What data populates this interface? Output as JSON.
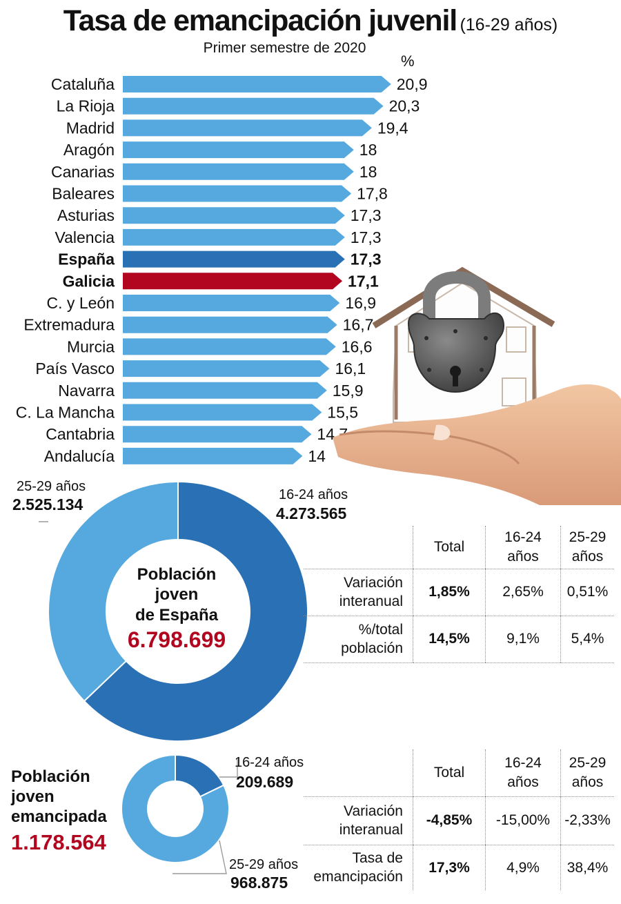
{
  "title": {
    "main": "Tasa de emancipación juvenil",
    "sub": "(16-29 años)"
  },
  "subtitle": "Primer semestre de 2020",
  "unit": "%",
  "colors": {
    "bar": "#56a9df",
    "spain": "#2a70b4",
    "galicia": "#b2051f",
    "donut_dark": "#2a70b4",
    "donut_light": "#56a9df",
    "accent_text": "#b2051f"
  },
  "chart_data": [
    {
      "type": "bar",
      "orientation": "horizontal",
      "categories": [
        "Cataluña",
        "La Rioja",
        "Madrid",
        "Aragón",
        "Canarias",
        "Baleares",
        "Asturias",
        "Valencia",
        "España",
        "Galicia",
        "C. y León",
        "Extremadura",
        "Murcia",
        "País Vasco",
        "Navarra",
        "C. La Mancha",
        "Cantabria",
        "Andalucía"
      ],
      "values": [
        20.9,
        20.3,
        19.4,
        18,
        18,
        17.8,
        17.3,
        17.3,
        17.3,
        17.1,
        16.9,
        16.7,
        16.6,
        16.1,
        15.9,
        15.5,
        14.7,
        14
      ],
      "value_labels": [
        "20,9",
        "20,3",
        "19,4",
        "18",
        "18",
        "17,8",
        "17,3",
        "17,3",
        "17,3",
        "17,1",
        "16,9",
        "16,7",
        "16,6",
        "16,1",
        "15,9",
        "15,5",
        "14,7",
        "14"
      ],
      "highlight": {
        "España": "spain",
        "Galicia": "galicia"
      },
      "title": "Tasa de emancipación juvenil",
      "ylabel": "%"
    },
    {
      "type": "pie",
      "style": "donut",
      "labels": [
        "16-24 años",
        "25-29 años"
      ],
      "values": [
        4273565,
        2525134
      ],
      "value_labels": [
        "4.273.565",
        "2.525.134"
      ],
      "center": {
        "title_lines": [
          "Población",
          "joven",
          "de España"
        ],
        "total": "6.798.699"
      }
    },
    {
      "type": "pie",
      "style": "donut",
      "labels": [
        "16-24 años",
        "25-29 años"
      ],
      "values": [
        209689,
        968875
      ],
      "value_labels": [
        "209.689",
        "968.875"
      ],
      "side_label": {
        "title_lines": [
          "Población",
          "joven",
          "emancipada"
        ],
        "total": "1.178.564"
      }
    }
  ],
  "table1": {
    "headers": [
      "Total",
      [
        "16-24",
        "años"
      ],
      [
        "25-29",
        "años"
      ]
    ],
    "rows": [
      {
        "label": [
          "Variación",
          "interanual"
        ],
        "values": [
          "1,85%",
          "2,65%",
          "0,51%"
        ]
      },
      {
        "label": [
          "%/total",
          "población"
        ],
        "values": [
          "14,5%",
          "9,1%",
          "5,4%"
        ]
      }
    ]
  },
  "table2": {
    "headers": [
      "Total",
      [
        "16-24",
        "años"
      ],
      [
        "25-29",
        "años"
      ]
    ],
    "rows": [
      {
        "label": [
          "Variación",
          "interanual"
        ],
        "values": [
          "-4,85%",
          "-15,00%",
          "-2,33%"
        ]
      },
      {
        "label": [
          "Tasa de",
          "emancipación"
        ],
        "values": [
          "17,3%",
          "4,9%",
          "38,4%"
        ]
      }
    ]
  },
  "illustration": {
    "icon": "padlock-house-in-hand"
  }
}
